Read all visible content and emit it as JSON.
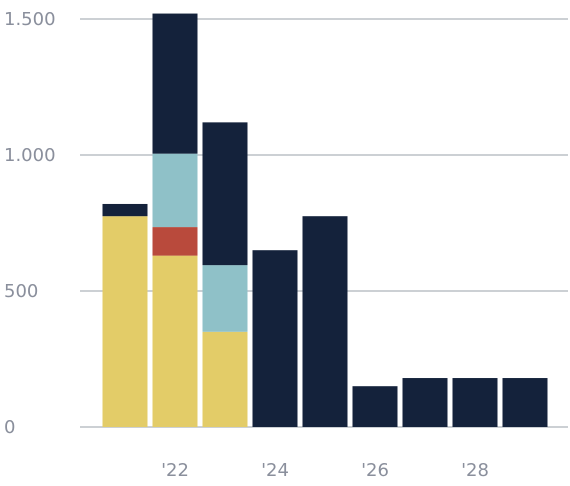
{
  "chart_data": {
    "type": "bar",
    "stacked": true,
    "title": "",
    "xlabel": "",
    "ylabel": "",
    "ylim": [
      0,
      1500
    ],
    "grid": true,
    "legend": "none",
    "x": [
      2021,
      2022,
      2023,
      2024,
      2025,
      2026,
      2027,
      2028,
      2029
    ],
    "x_tick_labels": [
      {
        "x": 2022,
        "label": "'22"
      },
      {
        "x": 2024,
        "label": "'24"
      },
      {
        "x": 2026,
        "label": "'26"
      },
      {
        "x": 2028,
        "label": "'28"
      }
    ],
    "y_tick_labels": [
      {
        "y": 0,
        "label": "0"
      },
      {
        "y": 500,
        "label": "500"
      },
      {
        "y": 1000,
        "label": "1.000"
      },
      {
        "y": 1500,
        "label": "1.500"
      }
    ],
    "series": [
      {
        "color": "#e3cc68",
        "values": [
          775,
          630,
          350,
          0,
          0,
          0,
          0,
          0,
          0
        ]
      },
      {
        "color": "#b94a3c",
        "values": [
          0,
          105,
          0,
          0,
          0,
          0,
          0,
          0,
          0
        ]
      },
      {
        "color": "#8fc1c8",
        "values": [
          0,
          270,
          245,
          0,
          0,
          0,
          0,
          0,
          0
        ]
      },
      {
        "color": "#14223b",
        "values": [
          45,
          515,
          525,
          650,
          775,
          150,
          180,
          180,
          180
        ]
      }
    ]
  }
}
